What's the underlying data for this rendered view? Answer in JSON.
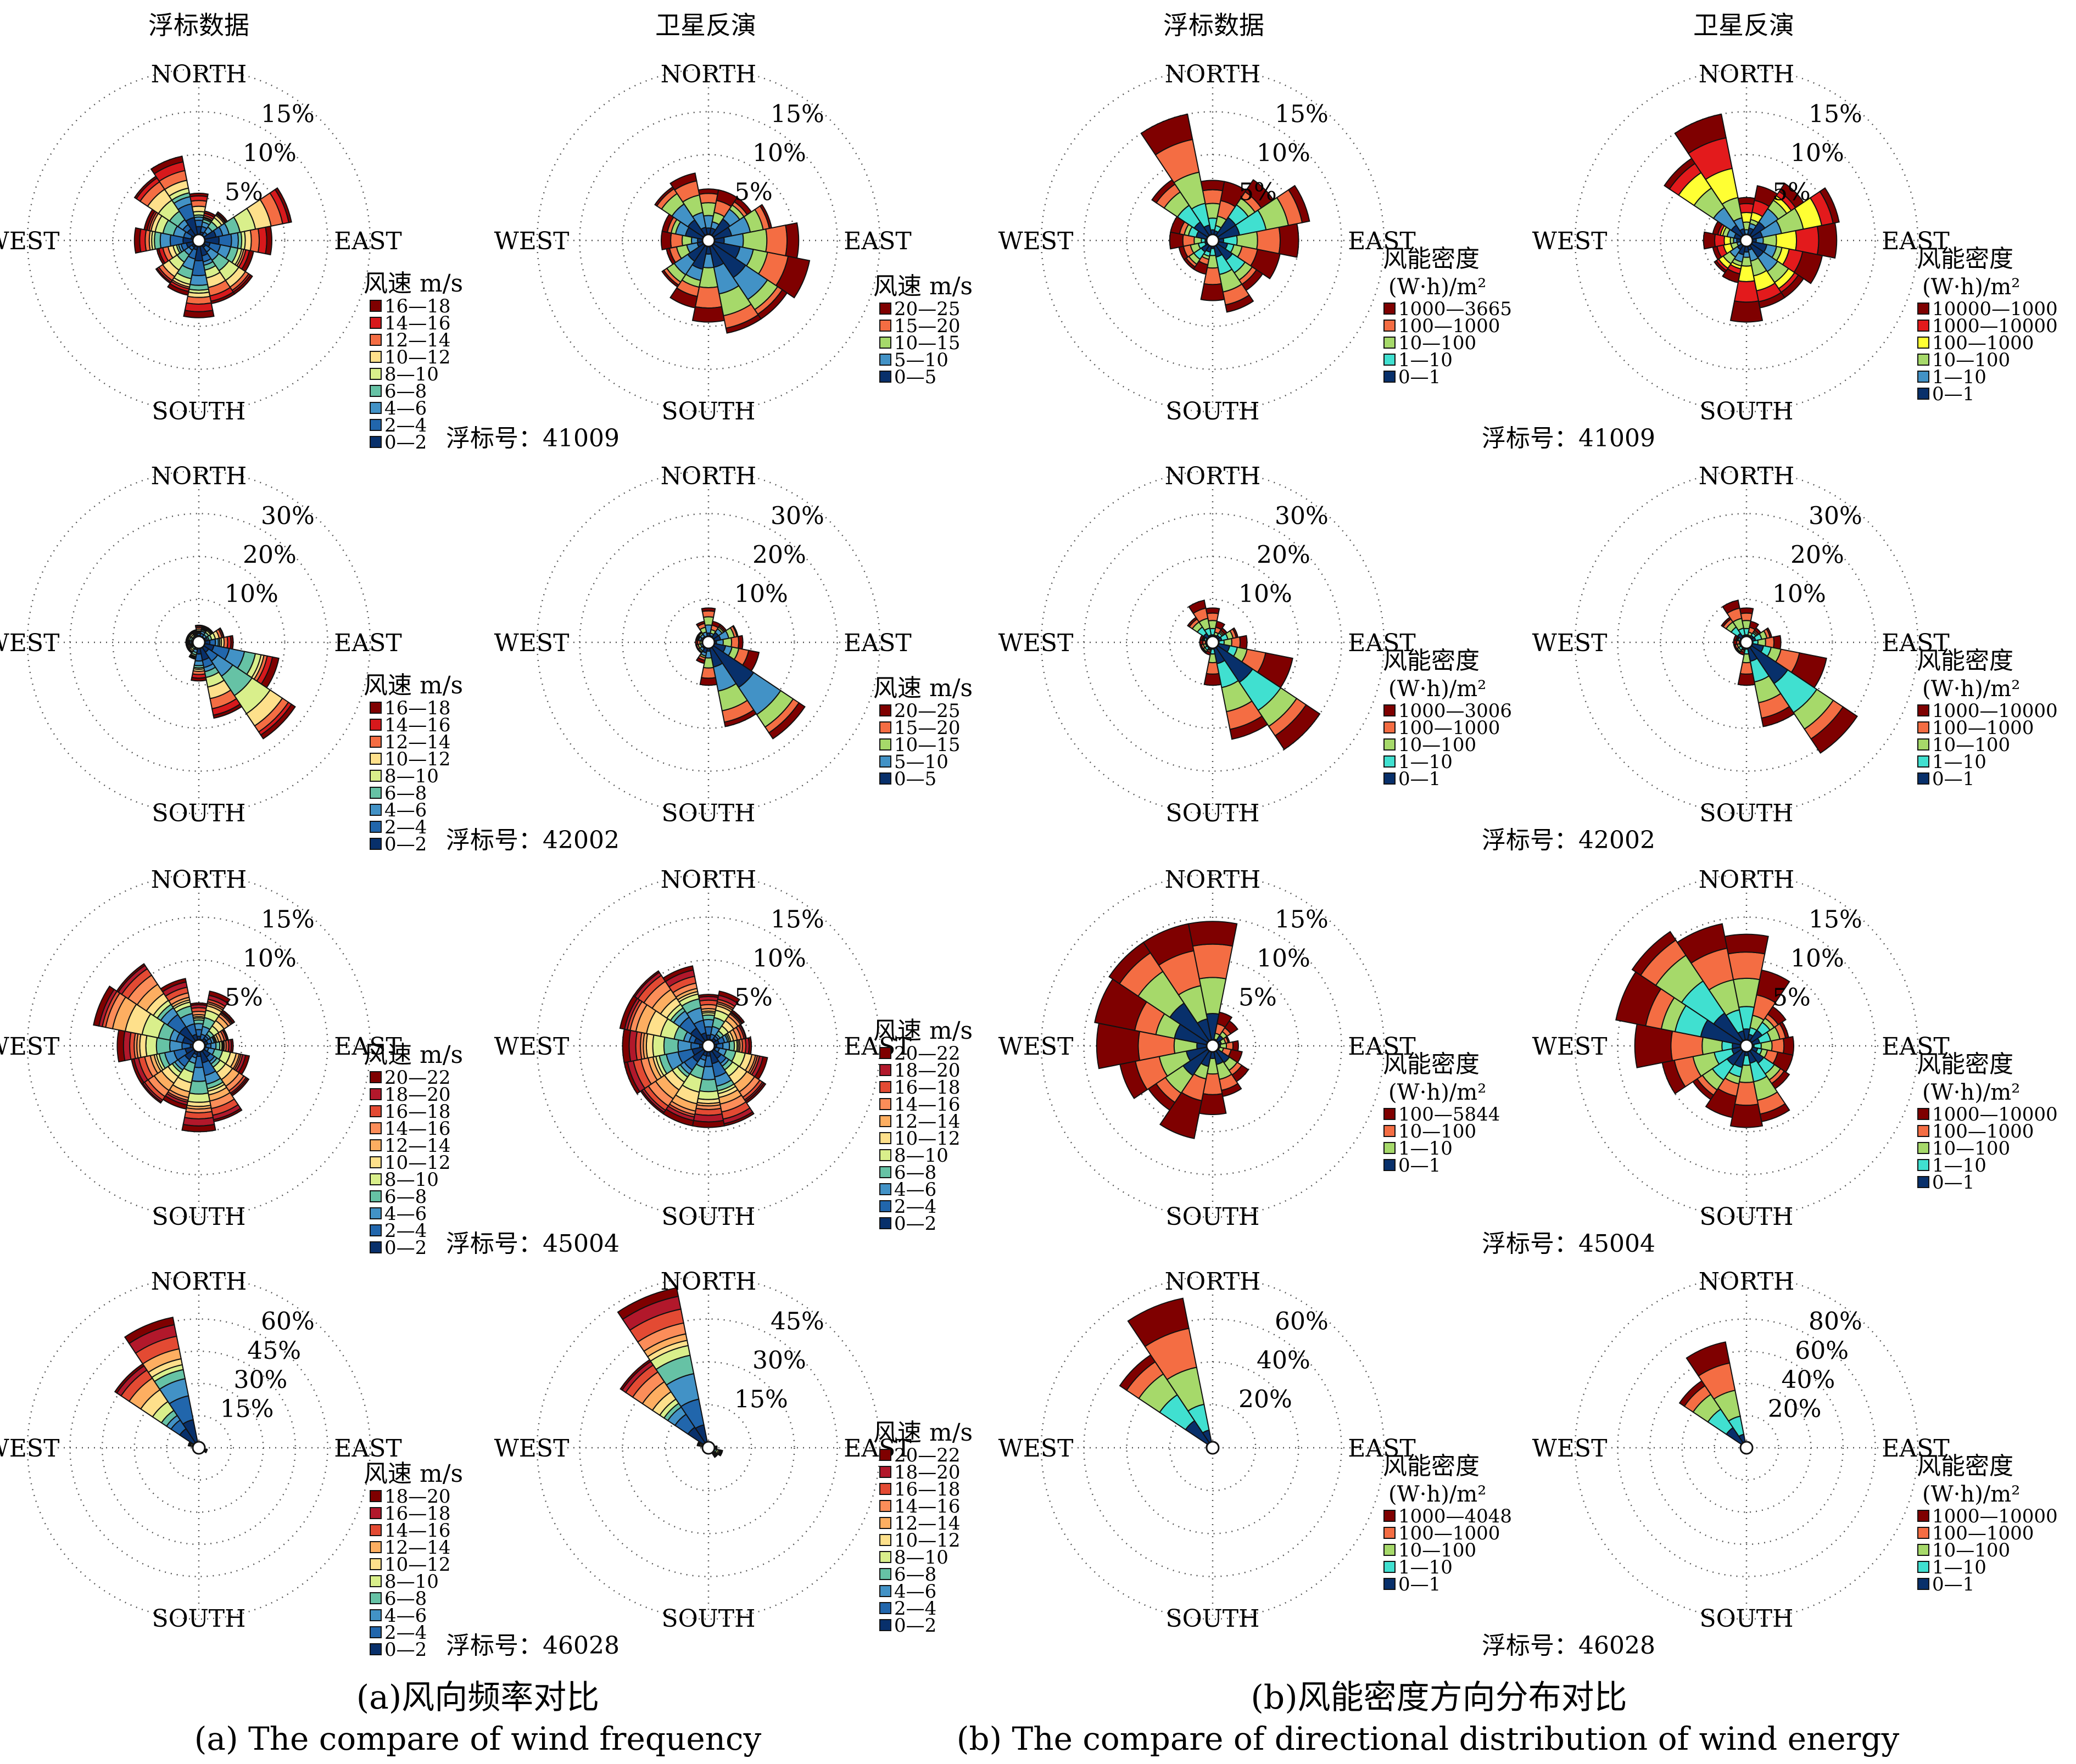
{
  "labels": {
    "directions": [
      "NORTH",
      "EAST",
      "SOUTH",
      "WEST"
    ],
    "buoy_prefix": "浮标号：",
    "col_titles": [
      "浮标数据",
      "卫星反演",
      "浮标数据",
      "卫星反演"
    ],
    "speed_legend_title": "风速 m/s",
    "energy_legend_title_1": "风能密度",
    "energy_legend_title_2": "(W·h)/m²"
  },
  "captions": {
    "a_cn": "(a)风向频率对比",
    "a_en": "(a) The compare of wind frequency",
    "b_cn": "(b)风能密度方向分布对比",
    "b_en": "(b) The compare of directional distribution of wind energy"
  },
  "chart_data": {
    "type": "polar-stacked-bar (wind rose)",
    "direction_sectors": 16,
    "rows": [
      {
        "buoy": "41009",
        "plots": [
          {
            "kind": "speed",
            "rings": [
              5,
              10,
              15
            ],
            "bins": [
              "16—18",
              "14—16",
              "12—14",
              "10—12",
              "8—10",
              "6—8",
              "4—6",
              "2—4",
              "0—2"
            ],
            "palette": [
              "#7f0000",
              "#d7191c",
              "#f46d43",
              "#fee08b",
              "#d9ef8b",
              "#66c2a5",
              "#4292c6",
              "#2166ac",
              "#08306b"
            ],
            "totals": [
              5.5,
              3.5,
              4,
              11,
              8.5,
              6.5,
              7.5,
              7.5,
              9,
              6.5,
              6,
              5,
              7.5,
              6.5,
              9,
              10
            ]
          },
          {
            "kind": "speed",
            "rings": [
              5,
              10,
              15
            ],
            "bins": [
              "20—25",
              "15—20",
              "10—15",
              "5—10",
              "0—5"
            ],
            "palette": [
              "#7f0000",
              "#f46d43",
              "#a6d96a",
              "#4292c6",
              "#08306b"
            ],
            "totals": [
              6,
              6,
              6,
              7.5,
              10.5,
              12,
              11,
              11,
              9.5,
              8,
              6.5,
              5,
              5.5,
              5.5,
              7.5,
              8
            ]
          },
          {
            "kind": "energy",
            "rings": [
              5,
              10,
              15
            ],
            "bins": [
              "1000—3665",
              "100—1000",
              "10—100",
              "1—10",
              "0—1"
            ],
            "palette": [
              "#7f0000",
              "#f46d43",
              "#a6d96a",
              "#40e0d0",
              "#08306b"
            ],
            "totals": [
              7,
              7,
              8.5,
              11.5,
              10,
              8,
              7,
              8.5,
              7,
              4,
              4,
              4,
              5,
              5,
              8.5,
              15
            ]
          },
          {
            "kind": "energy",
            "rings": [
              5,
              10,
              15
            ],
            "bins": [
              "10000—1000",
              "1000—10000",
              "100—1000",
              "10—100",
              "1—10",
              "0—1"
            ],
            "palette": [
              "#7f0000",
              "#e31a1c",
              "#ffff33",
              "#a6d96a",
              "#4292c6",
              "#08306b"
            ],
            "totals": [
              5,
              6.5,
              8,
              11,
              10.5,
              9,
              8,
              8,
              9.5,
              5,
              4.5,
              4,
              5,
              4,
              11.5,
              15
            ]
          }
        ]
      },
      {
        "buoy": "42002",
        "plots": [
          {
            "kind": "speed",
            "rings": [
              10,
              20,
              30
            ],
            "bins": [
              "16—18",
              "14—16",
              "12—14",
              "10—12",
              "8—10",
              "6—8",
              "4—6",
              "2—4",
              "0—2"
            ],
            "palette": [
              "#7f0000",
              "#d7191c",
              "#f46d43",
              "#fee08b",
              "#d9ef8b",
              "#66c2a5",
              "#4292c6",
              "#2166ac",
              "#08306b"
            ],
            "totals": [
              4,
              4,
              4,
              6,
              8,
              19,
              27,
              18,
              9,
              4,
              3,
              3,
              3,
              3,
              3,
              3
            ]
          },
          {
            "kind": "speed",
            "rings": [
              10,
              20,
              30
            ],
            "bins": [
              "20—25",
              "15—20",
              "10—15",
              "5—10",
              "0—5"
            ],
            "palette": [
              "#7f0000",
              "#f46d43",
              "#a6d96a",
              "#4292c6",
              "#08306b"
            ],
            "totals": [
              8,
              5,
              5,
              7,
              8,
              12,
              27,
              20,
              10,
              5,
              3,
              3,
              3,
              3,
              3,
              5
            ]
          },
          {
            "kind": "energy",
            "rings": [
              10,
              20,
              30
            ],
            "bins": [
              "1000—3006",
              "100—1000",
              "10—100",
              "1—10",
              "0—1"
            ],
            "palette": [
              "#7f0000",
              "#f46d43",
              "#a6d96a",
              "#40e0d0",
              "#08306b"
            ],
            "totals": [
              8,
              5,
              4,
              6,
              8,
              19,
              30,
              23,
              10,
              3,
              3,
              3,
              3,
              3,
              7,
              10
            ]
          },
          {
            "kind": "energy",
            "rings": [
              10,
              20,
              30
            ],
            "bins": [
              "1000—10000",
              "100—1000",
              "10—100",
              "1—10",
              "0—1"
            ],
            "palette": [
              "#7f0000",
              "#f46d43",
              "#a6d96a",
              "#40e0d0",
              "#08306b"
            ],
            "totals": [
              8,
              5,
              4,
              6,
              8,
              19,
              31,
              20,
              10,
              3,
              3,
              3,
              3,
              3,
              7,
              10
            ]
          }
        ]
      },
      {
        "buoy": "45004",
        "plots": [
          {
            "kind": "speed",
            "rings": [
              5,
              10,
              15
            ],
            "bins": [
              "20—22",
              "18—20",
              "16—18",
              "14—16",
              "12—14",
              "10—12",
              "8—10",
              "6—8",
              "4—6",
              "2—4",
              "0—2"
            ],
            "palette": [
              "#7f0000",
              "#b2182b",
              "#e34a33",
              "#fc8d59",
              "#fdae61",
              "#fee08b",
              "#d9ef8b",
              "#66c2a5",
              "#4292c6",
              "#2166ac",
              "#08306b"
            ],
            "totals": [
              5,
              6.5,
              5,
              3.5,
              4,
              6,
              7,
              9,
              10,
              7.5,
              8,
              8,
              9.5,
              12.5,
              11.5,
              8
            ]
          },
          {
            "kind": "speed",
            "rings": [
              5,
              10,
              15
            ],
            "bins": [
              "20—22",
              "18—20",
              "16—18",
              "14—16",
              "12—14",
              "10—12",
              "8—10",
              "6—8",
              "4—6",
              "2—4",
              "0—2"
            ],
            "palette": [
              "#7f0000",
              "#b2182b",
              "#e34a33",
              "#fc8d59",
              "#fdae61",
              "#fee08b",
              "#d9ef8b",
              "#66c2a5",
              "#4292c6",
              "#2166ac",
              "#08306b"
            ],
            "totals": [
              6,
              6.5,
              5,
              4.5,
              5,
              7,
              8,
              9.5,
              9.5,
              9.5,
              9.5,
              10,
              10,
              10.5,
              10.5,
              9.5
            ]
          },
          {
            "kind": "energy",
            "rings": [
              5,
              10,
              15
            ],
            "bins": [
              "100—5844",
              "10—100",
              "1—10",
              "0—1"
            ],
            "palette": [
              "#7f0000",
              "#f46d43",
              "#a6d96a",
              "#08306b"
            ],
            "totals": [
              14.5,
              4,
              3.5,
              2,
              3,
              3.5,
              5,
              6,
              8,
              11,
              9,
              11,
              13.5,
              14,
              14.5,
              14.5
            ]
          },
          {
            "kind": "energy",
            "rings": [
              5,
              10,
              15
            ],
            "bins": [
              "1000—10000",
              "100—1000",
              "10—100",
              "1—10",
              "0—1"
            ],
            "palette": [
              "#7f0000",
              "#f46d43",
              "#a6d96a",
              "#40e0d0",
              "#08306b"
            ],
            "totals": [
              13,
              9,
              5.5,
              5,
              5.5,
              5.5,
              6,
              9,
              9.5,
              8.5,
              7.5,
              10,
              13,
              15.5,
              16,
              14.5
            ]
          }
        ]
      },
      {
        "buoy": "46028",
        "plots": [
          {
            "kind": "speed",
            "rings": [
              15,
              30,
              45,
              60
            ],
            "bins": [
              "18—20",
              "16—18",
              "14—16",
              "12—14",
              "10—12",
              "8—10",
              "6—8",
              "4—6",
              "2—4",
              "0—2"
            ],
            "palette": [
              "#7f0000",
              "#b2182b",
              "#e34a33",
              "#fdae61",
              "#fee08b",
              "#d9ef8b",
              "#66c2a5",
              "#4292c6",
              "#2166ac",
              "#08306b"
            ],
            "totals": [
              3,
              2,
              2,
              2,
              3,
              4,
              3,
              2,
              2,
              2,
              2,
              2,
              2,
              5,
              47,
              62
            ]
          },
          {
            "kind": "speed",
            "rings": [
              15,
              30,
              45
            ],
            "bins": [
              "20—22",
              "18—20",
              "16—18",
              "14—16",
              "12—14",
              "10—12",
              "8—10",
              "6—8",
              "4—6",
              "2—4",
              "0—2"
            ],
            "palette": [
              "#7f0000",
              "#b2182b",
              "#e34a33",
              "#fc8d59",
              "#fdae61",
              "#fee08b",
              "#d9ef8b",
              "#66c2a5",
              "#4292c6",
              "#2166ac",
              "#08306b"
            ],
            "totals": [
              2,
              2,
              2,
              2,
              3,
              5,
              4,
              2,
              2,
              2,
              2,
              2,
              2,
              4,
              37,
              57
            ]
          },
          {
            "kind": "energy",
            "rings": [
              20,
              40,
              60
            ],
            "bins": [
              "1000—4048",
              "100—1000",
              "10—100",
              "1—10",
              "0—1"
            ],
            "palette": [
              "#7f0000",
              "#f46d43",
              "#a6d96a",
              "#40e0d0",
              "#08306b"
            ],
            "totals": [
              2,
              2,
              2,
              2,
              2,
              2,
              2,
              2,
              2,
              2,
              2,
              2,
              2,
              3,
              52,
              71
            ]
          },
          {
            "kind": "energy",
            "rings": [
              20,
              40,
              60,
              80
            ],
            "bins": [
              "1000—10000",
              "100—1000",
              "10—100",
              "1—10",
              "0—1"
            ],
            "palette": [
              "#7f0000",
              "#f46d43",
              "#a6d96a",
              "#40e0d0",
              "#08306b"
            ],
            "totals": [
              2,
              2,
              2,
              2,
              2,
              2,
              2,
              2,
              2,
              2,
              2,
              2,
              2,
              2,
              50,
              67
            ]
          }
        ]
      }
    ]
  }
}
